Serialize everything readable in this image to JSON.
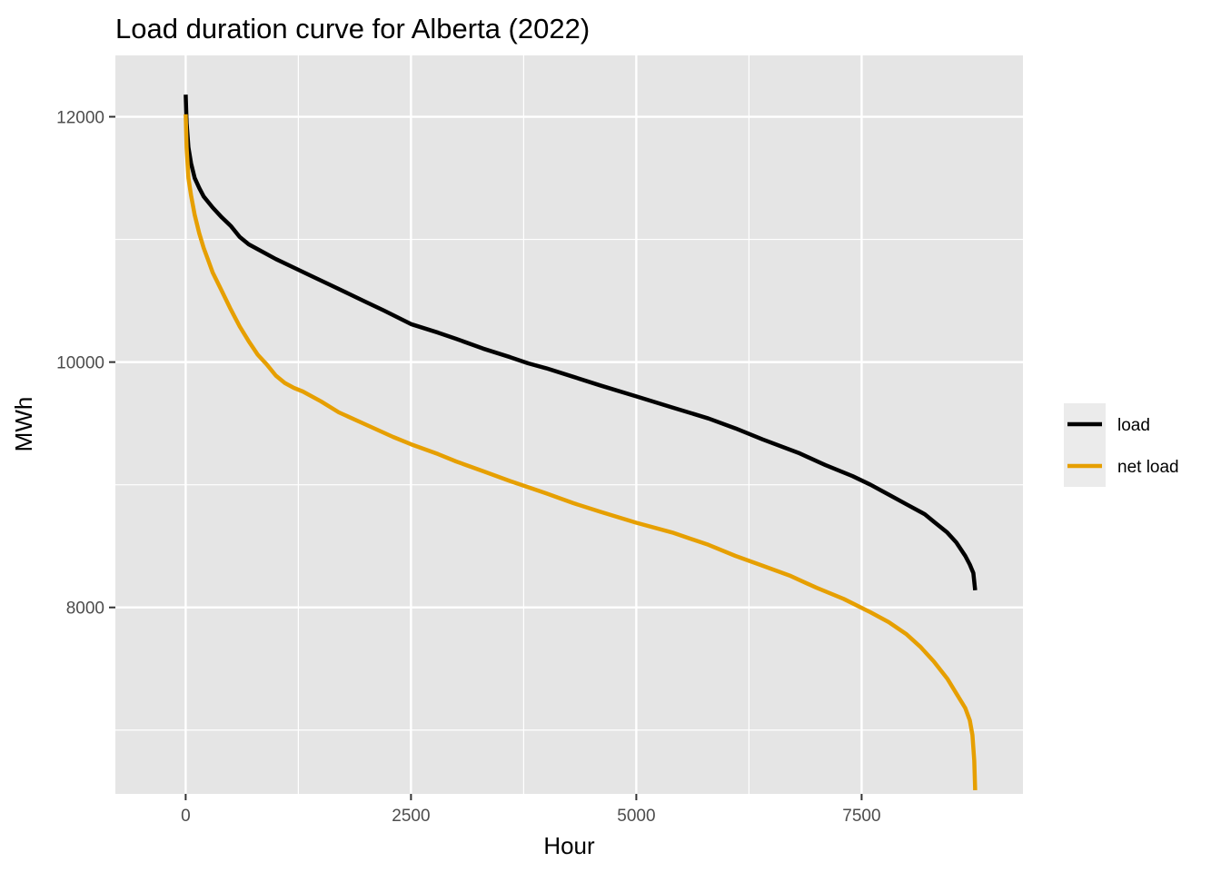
{
  "chart_data": {
    "type": "line",
    "title": "Load duration curve for Alberta (2022)",
    "xlabel": "Hour",
    "ylabel": "MWh",
    "xlim": [
      -780,
      9290
    ],
    "ylim": [
      6480,
      12500
    ],
    "x_ticks": [
      0,
      2500,
      5000,
      7500
    ],
    "x_tick_labels": [
      "0",
      "2500",
      "5000",
      "7500"
    ],
    "x_minor_ticks": [
      1250,
      3750,
      6250
    ],
    "y_ticks": [
      8000,
      10000,
      12000
    ],
    "y_tick_labels": [
      "8000",
      "10000",
      "12000"
    ],
    "y_minor_ticks": [
      7000,
      9000,
      11000
    ],
    "grid": true,
    "legend_position": "right",
    "series": [
      {
        "name": "load",
        "color": "#000000",
        "x": [
          0,
          10,
          30,
          60,
          100,
          150,
          200,
          300,
          400,
          500,
          600,
          700,
          800,
          1000,
          1200,
          1400,
          1600,
          1800,
          2000,
          2200,
          2500,
          2800,
          3000,
          3300,
          3600,
          3800,
          4000,
          4300,
          4600,
          5000,
          5400,
          5800,
          6100,
          6400,
          6800,
          7100,
          7400,
          7600,
          7800,
          8000,
          8200,
          8300,
          8450,
          8550,
          8650,
          8700,
          8740,
          8760
        ],
        "y": [
          12180,
          11950,
          11750,
          11620,
          11500,
          11420,
          11350,
          11260,
          11180,
          11110,
          11020,
          10960,
          10920,
          10840,
          10770,
          10700,
          10630,
          10560,
          10490,
          10420,
          10310,
          10240,
          10190,
          10110,
          10040,
          9990,
          9950,
          9880,
          9810,
          9720,
          9630,
          9540,
          9460,
          9370,
          9260,
          9160,
          9070,
          9000,
          8920,
          8840,
          8760,
          8700,
          8610,
          8530,
          8420,
          8350,
          8280,
          8140
        ]
      },
      {
        "name": "net load",
        "color": "#e69f00",
        "x": [
          0,
          10,
          30,
          60,
          100,
          150,
          200,
          250,
          300,
          400,
          500,
          600,
          700,
          800,
          900,
          1000,
          1100,
          1200,
          1300,
          1500,
          1700,
          2000,
          2300,
          2500,
          2800,
          3000,
          3300,
          3600,
          3800,
          4000,
          4300,
          4600,
          5000,
          5400,
          5800,
          6100,
          6400,
          6700,
          7000,
          7300,
          7600,
          7800,
          8000,
          8150,
          8300,
          8450,
          8550,
          8650,
          8700,
          8730,
          8750,
          8760
        ],
        "y": [
          12020,
          11750,
          11500,
          11360,
          11200,
          11050,
          10930,
          10830,
          10730,
          10580,
          10430,
          10290,
          10170,
          10060,
          9980,
          9890,
          9830,
          9790,
          9760,
          9680,
          9590,
          9490,
          9390,
          9330,
          9250,
          9190,
          9110,
          9030,
          8980,
          8930,
          8850,
          8780,
          8690,
          8610,
          8510,
          8420,
          8340,
          8260,
          8160,
          8070,
          7960,
          7880,
          7780,
          7680,
          7560,
          7420,
          7300,
          7180,
          7080,
          6960,
          6750,
          6510
        ]
      }
    ]
  }
}
